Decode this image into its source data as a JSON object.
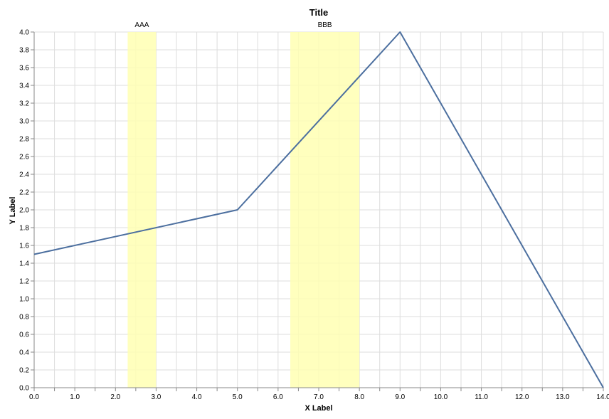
{
  "chart_data": {
    "type": "line",
    "title": "Title",
    "xlabel": "X Label",
    "ylabel": "Y Label",
    "xlim": [
      0,
      14
    ],
    "ylim": [
      0,
      4
    ],
    "x_ticks": [
      "0.0",
      "1.0",
      "2.0",
      "3.0",
      "4.0",
      "5.0",
      "6.0",
      "7.0",
      "8.0",
      "9.0",
      "10.0",
      "11.0",
      "12.0",
      "13.0",
      "14.0"
    ],
    "y_ticks": [
      "0.0",
      "0.2",
      "0.4",
      "0.6",
      "0.8",
      "1.0",
      "1.2",
      "1.4",
      "1.6",
      "1.8",
      "2.0",
      "2.2",
      "2.4",
      "2.6",
      "2.8",
      "3.0",
      "3.2",
      "3.4",
      "3.6",
      "3.8",
      "4.0"
    ],
    "grid": true,
    "series": [
      {
        "color": "#4c6f9f",
        "points": [
          [
            0,
            1.5
          ],
          [
            5,
            2.0
          ],
          [
            9,
            4.0
          ],
          [
            14,
            0.0
          ]
        ]
      }
    ],
    "bands": [
      {
        "label": "AAA",
        "x_start": 2.3,
        "x_end": 3.0,
        "color": "#ffffb3"
      },
      {
        "label": "BBB",
        "x_start": 6.3,
        "x_end": 8.0,
        "color": "#ffffb3"
      }
    ]
  }
}
